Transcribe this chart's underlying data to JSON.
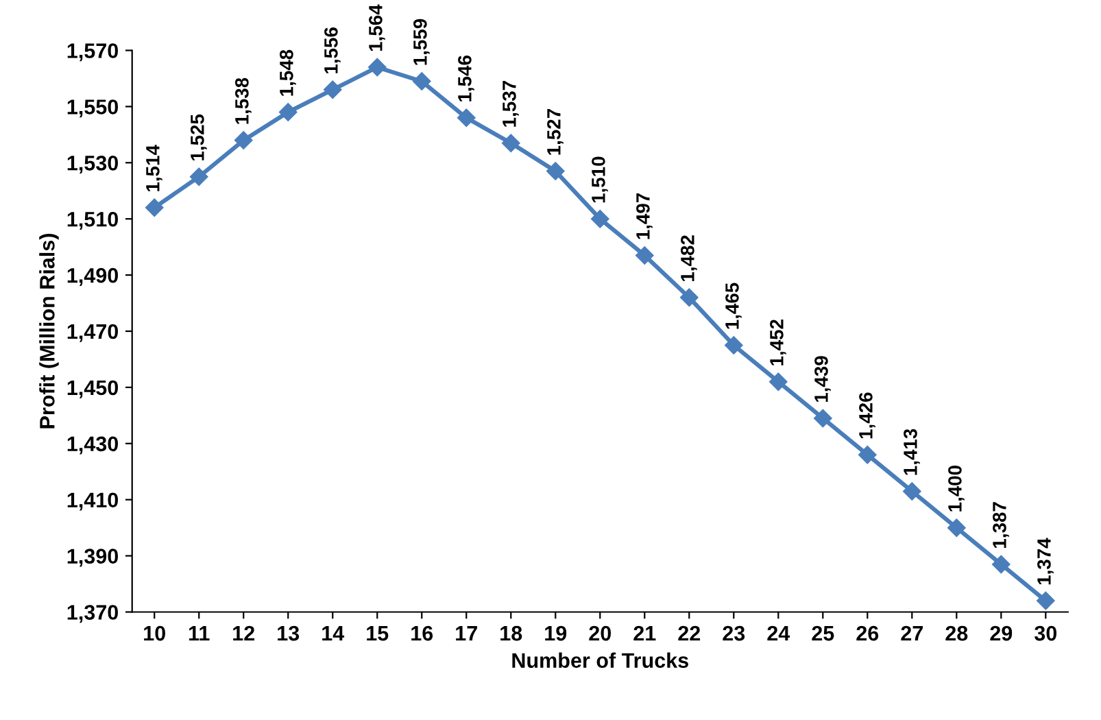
{
  "chart_data": {
    "type": "line",
    "xlabel": "Number of Trucks",
    "ylabel": "Profit (Million Rials)",
    "categories": [
      "10",
      "11",
      "12",
      "13",
      "14",
      "15",
      "16",
      "17",
      "18",
      "19",
      "20",
      "21",
      "22",
      "23",
      "24",
      "25",
      "26",
      "27",
      "28",
      "29",
      "30"
    ],
    "series": [
      {
        "color": "#4a7ebb",
        "values": [
          1514,
          1525,
          1538,
          1548,
          1556,
          1564,
          1559,
          1546,
          1537,
          1527,
          1510,
          1497,
          1482,
          1465,
          1452,
          1439,
          1426,
          1413,
          1400,
          1387,
          1374
        ],
        "value_labels": [
          "1,514",
          "1,525",
          "1,538",
          "1,548",
          "1,556",
          "1,564",
          "1,559",
          "1,546",
          "1,537",
          "1,527",
          "1,510",
          "1,497",
          "1,482",
          "1,465",
          "1,452",
          "1,439",
          "1,426",
          "1,413",
          "1,400",
          "1,387",
          "1,374"
        ]
      }
    ],
    "ylim": [
      1370,
      1570
    ],
    "yticks": [
      {
        "value": 1370,
        "label": "1,370"
      },
      {
        "value": 1390,
        "label": "1,390"
      },
      {
        "value": 1410,
        "label": "1,410"
      },
      {
        "value": 1430,
        "label": "1,430"
      },
      {
        "value": 1450,
        "label": "1,450"
      },
      {
        "value": 1470,
        "label": "1,470"
      },
      {
        "value": 1490,
        "label": "1,490"
      },
      {
        "value": 1510,
        "label": "1,510"
      },
      {
        "value": 1530,
        "label": "1,530"
      },
      {
        "value": 1550,
        "label": "1,550"
      },
      {
        "value": 1570,
        "label": "1,570"
      }
    ],
    "marker": "diamond",
    "line_style": "solid",
    "grid": false,
    "legend": false
  }
}
